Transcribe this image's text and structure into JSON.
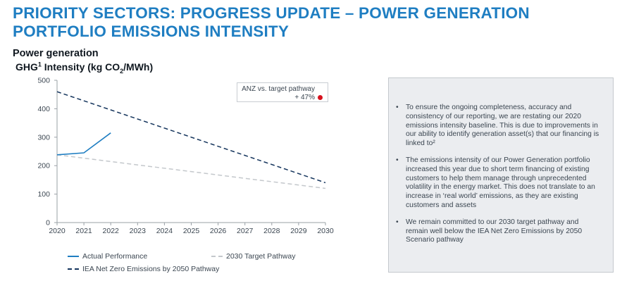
{
  "header": {
    "title_line1": "PRIORITY SECTORS: PROGRESS UPDATE – POWER GENERATION",
    "title_line2": "PORTFOLIO EMISSIONS INTENSITY"
  },
  "chart_data": {
    "type": "line",
    "title": "Power generation",
    "ylabel": {
      "prefix": "GHG",
      "sup": "1",
      "mid": " Intensity (kg CO",
      "sub": "2",
      "suffix": "/MWh)"
    },
    "xlim": [
      2020,
      2030
    ],
    "ylim": [
      0,
      500
    ],
    "x_ticks": [
      "2020",
      "2021",
      "2022",
      "2023",
      "2024",
      "2025",
      "2026",
      "2027",
      "2028",
      "2029",
      "2030"
    ],
    "y_ticks": [
      "0",
      "100",
      "200",
      "300",
      "400",
      "500"
    ],
    "grid": false,
    "legend_position": "bottom",
    "series": [
      {
        "name": "Actual Performance",
        "style": "solid",
        "color": "#1f7ec2",
        "x": [
          2020,
          2021,
          2022
        ],
        "y": [
          238,
          245,
          315
        ]
      },
      {
        "name": "2030 Target Pathway",
        "style": "dashed",
        "color": "#c4c8cc",
        "x": [
          2020,
          2030
        ],
        "y": [
          238,
          120
        ]
      },
      {
        "name": "IEA Net Zero Emissions by 2050 Pathway",
        "style": "dashed",
        "color": "#14345c",
        "x": [
          2020,
          2030
        ],
        "y": [
          460,
          140
        ]
      }
    ],
    "annotation": {
      "line1": "ANZ vs. target pathway",
      "line2": "+ 47%",
      "dot_color": "#d6121e"
    }
  },
  "notes": {
    "bullets": [
      "To ensure the ongoing completeness, accuracy and consistency of our reporting, we are restating our 2020 emissions intensity baseline. This is due to improvements in our ability to identify generation asset(s) that our financing is linked to²",
      "The emissions intensity of our Power Generation portfolio increased this year due to short term financing of existing customers to help them manage through unprecedented volatility in the energy market. This does not translate to an increase in ‘real world’ emissions, as they are existing customers and assets",
      "We remain committed to our 2030 target pathway and remain well below the IEA Net Zero Emissions by 2050 Scenario pathway"
    ]
  }
}
